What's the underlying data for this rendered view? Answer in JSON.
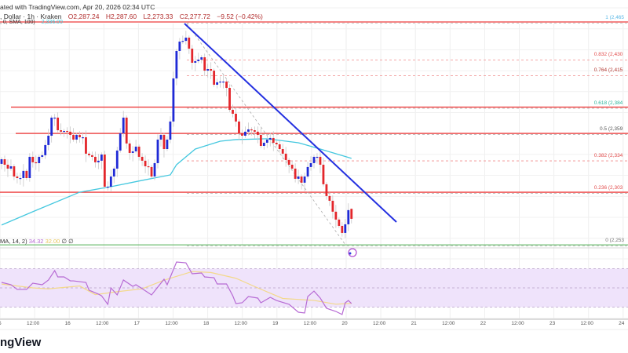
{
  "header": {
    "published": "ated with TradingView.com, Apr 20, 2026 02:34 UTC",
    "symbol": ", Dollar · 1h · Kraken",
    "open": "O2,287.24",
    "high": "H2,287.60",
    "low": "L2,273.33",
    "close": "C2,277.72",
    "change": "−9.52 (−0.42%)",
    "sma_label": ", 0, SMA, 100)",
    "sma_value": "2,336.00"
  },
  "rsi_header": {
    "label": "MA, 14, 2)",
    "rsi_value": "34.32",
    "rsi_ma_value": "32.00",
    "extra1": "∅",
    "extra2": "∅"
  },
  "logo_text": "ngView",
  "colors": {
    "up": "#1f2ad6",
    "down": "#e3262b",
    "sma": "#45c8df",
    "trendline": "#2430e0",
    "support": "#ee3c3c",
    "rsi": "#b76bd4",
    "rsi_ma": "#f3d98a",
    "rsi_band": "#efe3fb",
    "zero_line": "#4caf50"
  },
  "chart_data": {
    "type": "candlestick",
    "interval": "1h",
    "x_ticks": [
      "15",
      "12:00",
      "16",
      "12:00",
      "17",
      "12:00",
      "18",
      "12:00",
      "19",
      "12:00",
      "20",
      "12:00",
      "21",
      "12:00",
      "22",
      "12:00",
      "23",
      "12:00",
      "24"
    ],
    "y_range": [
      2253,
      2465
    ],
    "closes": [
      2334.4,
      2329.2,
      2325.5,
      2327.7,
      2318,
      2316.5,
      2316.5,
      2323.3,
      2316.5,
      2336.7,
      2331.5,
      2330.7,
      2336.7,
      2338.2,
      2347.9,
      2356.8,
      2374,
      2374,
      2362,
      2360.6,
      2361.3,
      2360.6,
      2357.6,
      2353.1,
      2357.6,
      2355.3,
      2355.3,
      2339.7,
      2338.2,
      2336.7,
      2331.5,
      2333,
      2338.9,
      2308.3,
      2308.3,
      2318,
      2325.5,
      2342.7,
      2359.1,
      2374,
      2349.4,
      2340.4,
      2341.9,
      2346.4,
      2336.7,
      2333,
      2327.7,
      2327,
      2318,
      2330.7,
      2353.1,
      2357.6,
      2344.1,
      2353.1,
      2370.3,
      2411.3,
      2437.4,
      2446.3,
      2447,
      2450.1,
      2439.6,
      2426.2,
      2427.7,
      2429.2,
      2431.4,
      2418.7,
      2420.2,
      2418.7,
      2405.3,
      2407.6,
      2408.3,
      2408.3,
      2402.3,
      2381.4,
      2377.7,
      2370.3,
      2359.1,
      2356.8,
      2360.6,
      2362.8,
      2362,
      2360.6,
      2357.6,
      2347.1,
      2350.1,
      2353.1,
      2354.6,
      2350.1,
      2348.6,
      2344.1,
      2339.7,
      2333.7,
      2329.2,
      2325.5,
      2315.8,
      2318,
      2312.1,
      2318,
      2327,
      2330.7,
      2336.7,
      2336.7,
      2329.2,
      2310.6,
      2299.4,
      2294.9,
      2284.5,
      2277,
      2271,
      2264.3,
      2272.5,
      2286,
      2277.72
    ],
    "last_candle": {
      "open": 2287.24,
      "high": 2287.6,
      "low": 2273.33,
      "close": 2277.72,
      "change": -9.52,
      "change_pct": -0.42
    },
    "sma_100": [
      [
        0,
        2271.8
      ],
      [
        10,
        2284.5
      ],
      [
        25,
        2303.1
      ],
      [
        35,
        2308.3
      ],
      [
        45,
        2314.3
      ],
      [
        54,
        2319.5
      ],
      [
        56,
        2329.2
      ],
      [
        62,
        2344.1
      ],
      [
        70,
        2351.6
      ],
      [
        75,
        2353.1
      ],
      [
        85,
        2353.9
      ],
      [
        95,
        2350.1
      ],
      [
        102,
        2344.1
      ],
      [
        112,
        2335.2
      ]
    ],
    "horizontal_levels": [
      2465,
      2384,
      2359,
      2303
    ],
    "zero_level": 2253,
    "fibonacci": [
      {
        "ratio": "1",
        "label": "1 (2,465",
        "price": 2465,
        "color": "#5bb8e6",
        "style": "solid"
      },
      {
        "ratio": "0.832",
        "label": "0.832 (2,430",
        "price": 2430,
        "color": "#e24b4b",
        "style": "dashed"
      },
      {
        "ratio": "0.764",
        "label": "0.764 (2,415",
        "price": 2415,
        "color": "#b2362f",
        "style": "dashed"
      },
      {
        "ratio": "0.618",
        "label": "0.618 (2,384",
        "price": 2384,
        "color": "#2bb39a",
        "style": "solid"
      },
      {
        "ratio": "0.5",
        "label": "0.5 (2,359",
        "price": 2359,
        "color": "#555555",
        "style": "solid"
      },
      {
        "ratio": "0.382",
        "label": "0.382 (2,334",
        "price": 2334,
        "color": "#e24b4b",
        "style": "dashed"
      },
      {
        "ratio": "0.236",
        "label": "0.236 (2,303",
        "price": 2303,
        "color": "#e24b4b",
        "style": "solid"
      },
      {
        "ratio": "0",
        "label": "0 (2,253",
        "price": 2253,
        "color": "#777777",
        "style": "solid"
      }
    ],
    "trendline": {
      "from": [
        58,
        2465
      ],
      "to": [
        126,
        2276
      ]
    },
    "rsi": {
      "levels": [
        70,
        50,
        30
      ],
      "values": [
        [
          0,
          55.7
        ],
        [
          3,
          53.3
        ],
        [
          5,
          48.4
        ],
        [
          8,
          48.4
        ],
        [
          10,
          54.9
        ],
        [
          13,
          53.3
        ],
        [
          15,
          58.2
        ],
        [
          17,
          68
        ],
        [
          18,
          61.4
        ],
        [
          20,
          61.4
        ],
        [
          22,
          57.3
        ],
        [
          23,
          57.3
        ],
        [
          27,
          55.7
        ],
        [
          28,
          47.6
        ],
        [
          31,
          43.5
        ],
        [
          32,
          41.8
        ],
        [
          34,
          32.9
        ],
        [
          35,
          50
        ],
        [
          37,
          42.7
        ],
        [
          39,
          58.2
        ],
        [
          42,
          51.6
        ],
        [
          43,
          53.3
        ],
        [
          45,
          49.2
        ],
        [
          48,
          42.7
        ],
        [
          52,
          59
        ],
        [
          53,
          53.3
        ],
        [
          56,
          76.9
        ],
        [
          59,
          76.1
        ],
        [
          61,
          64.7
        ],
        [
          64,
          65.5
        ],
        [
          65,
          61.4
        ],
        [
          68,
          60.6
        ],
        [
          69,
          54.1
        ],
        [
          72,
          54.1
        ],
        [
          74,
          41.8
        ],
        [
          75,
          33.7
        ],
        [
          77,
          34.5
        ],
        [
          79,
          41
        ],
        [
          82,
          39.4
        ],
        [
          83,
          34.5
        ],
        [
          86,
          40.2
        ],
        [
          88,
          36.9
        ],
        [
          92,
          32.9
        ],
        [
          95,
          24.7
        ],
        [
          97,
          23.9
        ],
        [
          98,
          41
        ],
        [
          100,
          46.7
        ],
        [
          102,
          39.4
        ],
        [
          104,
          28.8
        ],
        [
          107,
          25.5
        ],
        [
          109,
          22.3
        ],
        [
          110,
          34.5
        ],
        [
          111,
          36.9
        ],
        [
          112,
          33.7
        ]
      ],
      "ma": [
        [
          0,
          54
        ],
        [
          10,
          50
        ],
        [
          15,
          49
        ],
        [
          25,
          52
        ],
        [
          30,
          43
        ],
        [
          37,
          46
        ],
        [
          45,
          49
        ],
        [
          52,
          58
        ],
        [
          61,
          67
        ],
        [
          67,
          66
        ],
        [
          75,
          60
        ],
        [
          82,
          50
        ],
        [
          90,
          39
        ],
        [
          100,
          37
        ],
        [
          107,
          33
        ],
        [
          112,
          34
        ]
      ]
    }
  }
}
